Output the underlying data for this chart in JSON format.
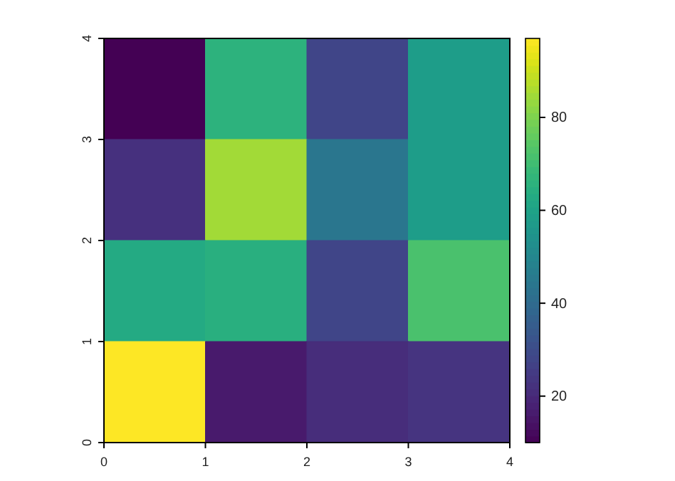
{
  "chart_data": {
    "type": "heatmap",
    "x": [
      0.5,
      1.5,
      2.5,
      3.5
    ],
    "y": [
      3.5,
      2.5,
      1.5,
      0.5
    ],
    "cells": [
      [
        10,
        66,
        28,
        58
      ],
      [
        22,
        85,
        44,
        58
      ],
      [
        63,
        65,
        28,
        72
      ],
      [
        97,
        16,
        21,
        23
      ]
    ],
    "xlim": [
      0,
      4
    ],
    "ylim": [
      0,
      4
    ],
    "xticks": [
      0,
      1,
      2,
      3,
      4
    ],
    "yticks": [
      0,
      1,
      2,
      3,
      4
    ],
    "clim": [
      10,
      97
    ],
    "cticks": [
      20,
      40,
      60,
      80
    ]
  }
}
